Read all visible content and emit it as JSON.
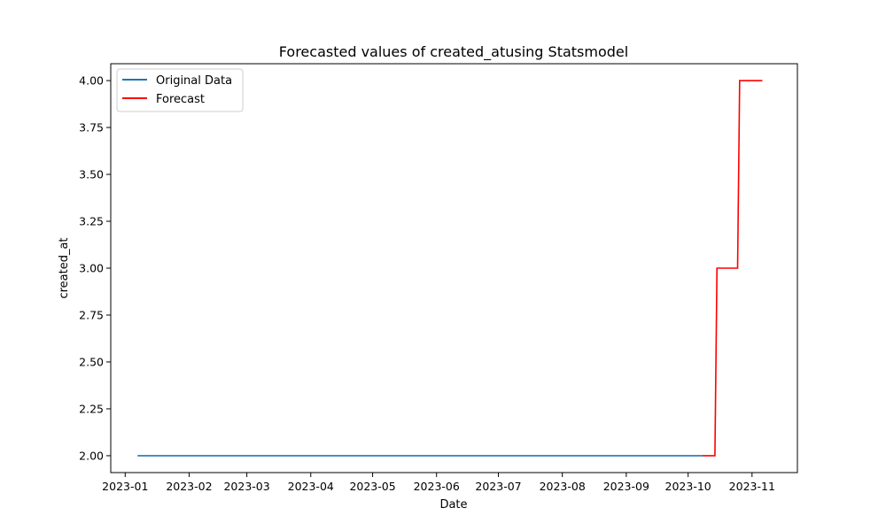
{
  "chart_data": {
    "type": "line",
    "title": "Forecasted values of created_atusing Statsmodel",
    "xlabel": "Date",
    "ylabel": "created_at",
    "x_tick_labels": [
      "2023-01",
      "2023-02",
      "2023-03",
      "2023-04",
      "2023-05",
      "2023-06",
      "2023-07",
      "2023-08",
      "2023-09",
      "2023-10",
      "2023-11"
    ],
    "y_tick_labels": [
      "2.00",
      "2.25",
      "2.50",
      "2.75",
      "3.00",
      "3.25",
      "3.50",
      "3.75",
      "4.00"
    ],
    "ylim": [
      1.91,
      4.09
    ],
    "xlim": [
      "2022-12-25",
      "2023-11-23"
    ],
    "grid": false,
    "legend_position": "top-left",
    "series": [
      {
        "name": "Original Data",
        "color": "#1f77b4",
        "points": [
          {
            "x": "2023-01-07",
            "y": 2.0
          },
          {
            "x": "2023-10-08",
            "y": 2.0
          }
        ]
      },
      {
        "name": "Forecast",
        "color": "#ff0000",
        "points": [
          {
            "x": "2023-10-08",
            "y": 2.0
          },
          {
            "x": "2023-10-14",
            "y": 2.0
          },
          {
            "x": "2023-10-15",
            "y": 3.0
          },
          {
            "x": "2023-10-25",
            "y": 3.0
          },
          {
            "x": "2023-10-26",
            "y": 4.0
          },
          {
            "x": "2023-11-06",
            "y": 4.0
          }
        ]
      }
    ]
  }
}
